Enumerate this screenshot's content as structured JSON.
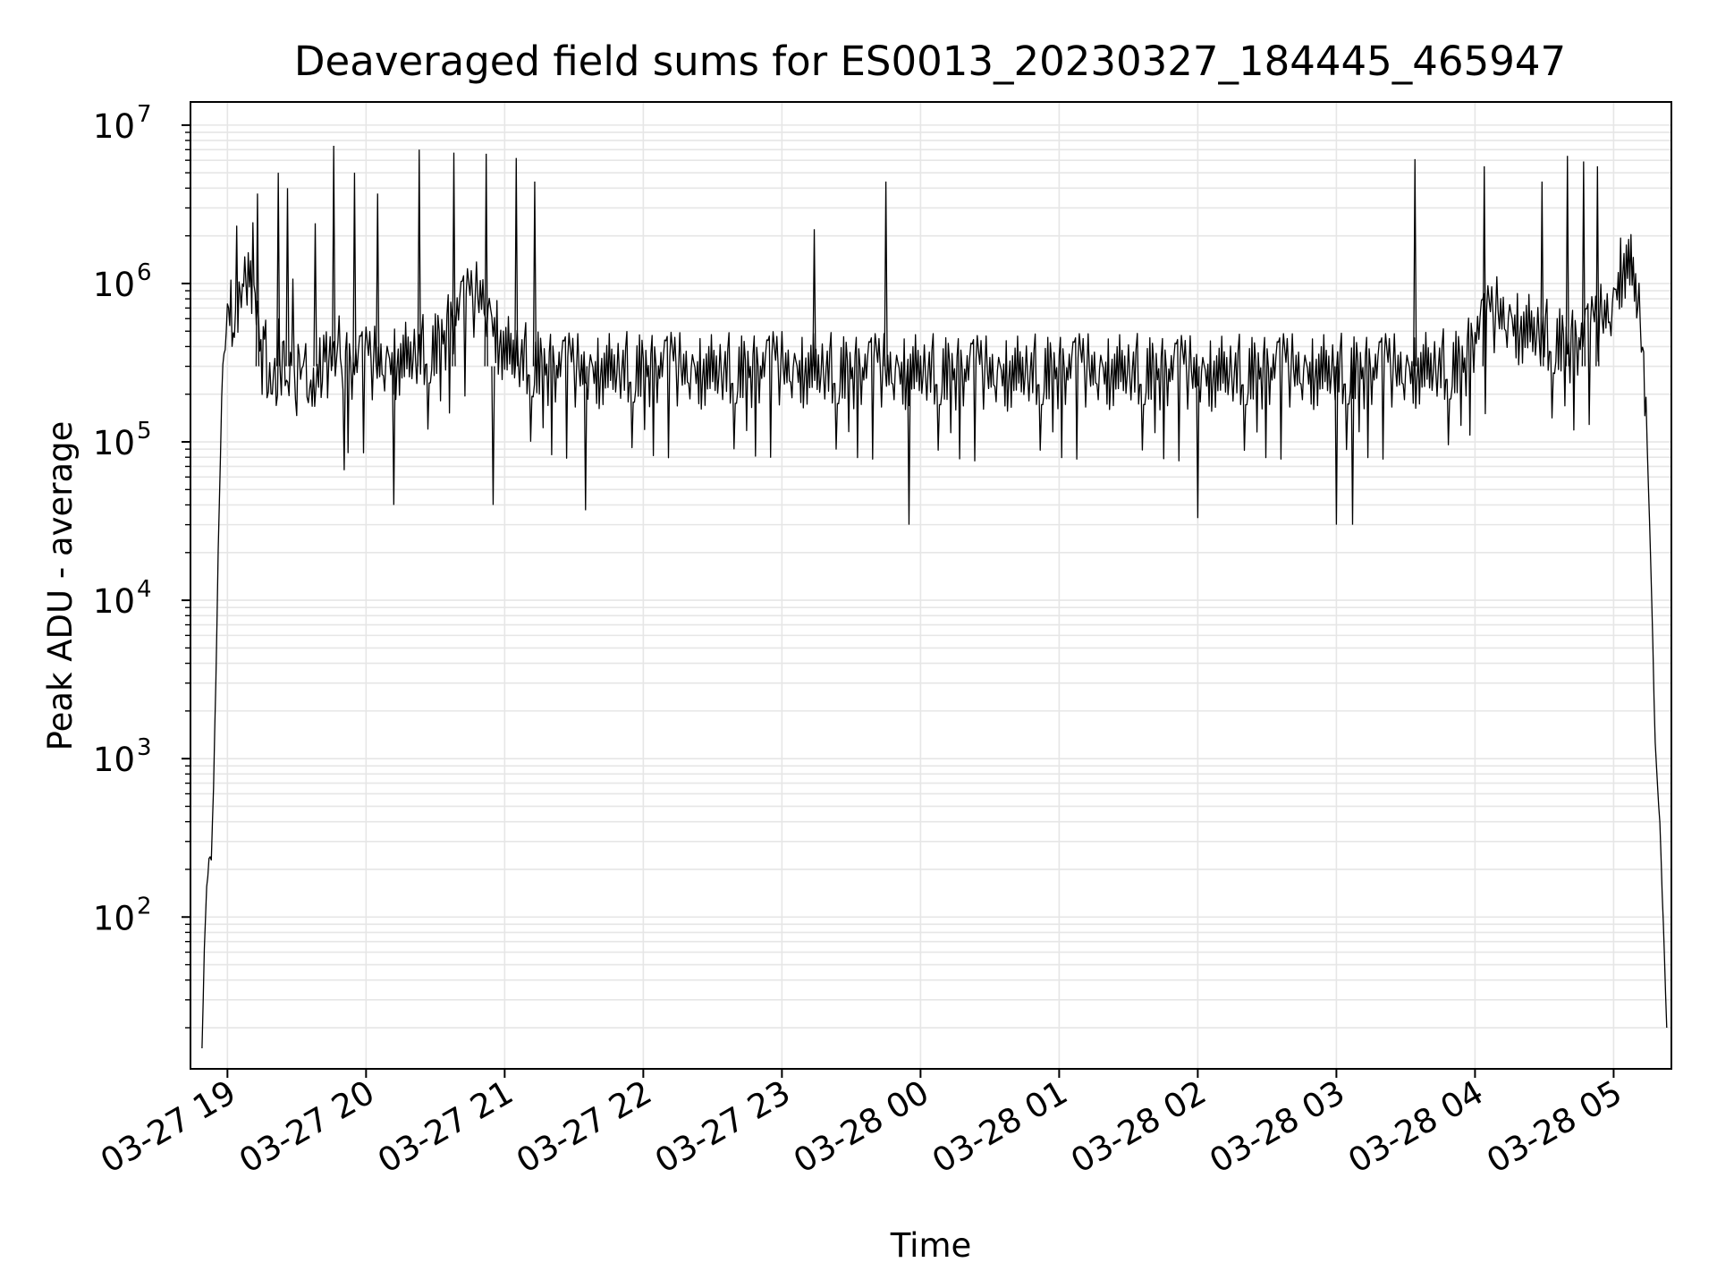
{
  "chart_data": {
    "type": "line",
    "title": "Deaveraged field sums for ES0013_20230327_184445_465947",
    "xlabel": "Time",
    "ylabel": "Peak ADU - average",
    "yscale": "log",
    "ylim": [
      11,
      14000000
    ],
    "y_ticks": [
      {
        "base": "10",
        "exp": "2",
        "value": 100
      },
      {
        "base": "10",
        "exp": "3",
        "value": 1000
      },
      {
        "base": "10",
        "exp": "4",
        "value": 10000
      },
      {
        "base": "10",
        "exp": "5",
        "value": 100000
      },
      {
        "base": "10",
        "exp": "6",
        "value": 1000000
      },
      {
        "base": "10",
        "exp": "7",
        "value": 10000000
      }
    ],
    "xlim": [
      "2023-03-27 18:44",
      "2023-03-28 05:25"
    ],
    "x_ticks": [
      {
        "label": "03-27 19",
        "time": "2023-03-27 19:00"
      },
      {
        "label": "03-27 20",
        "time": "2023-03-27 20:00"
      },
      {
        "label": "03-27 21",
        "time": "2023-03-27 21:00"
      },
      {
        "label": "03-27 22",
        "time": "2023-03-27 22:00"
      },
      {
        "label": "03-27 23",
        "time": "2023-03-27 23:00"
      },
      {
        "label": "03-28 00",
        "time": "2023-03-28 00:00"
      },
      {
        "label": "03-28 01",
        "time": "2023-03-28 01:00"
      },
      {
        "label": "03-28 02",
        "time": "2023-03-28 02:00"
      },
      {
        "label": "03-28 03",
        "time": "2023-03-28 03:00"
      },
      {
        "label": "03-28 04",
        "time": "2023-03-28 04:00"
      },
      {
        "label": "03-28 05",
        "time": "2023-03-28 05:00"
      }
    ],
    "grid": true,
    "line_color": "#000000",
    "grid_color": "#e6e6e6",
    "series": [
      {
        "x": [
          "2023-03-27 18:49",
          "2023-03-27 18:50",
          "2023-03-27 18:51",
          "2023-03-27 18:52",
          "2023-03-27 18:53",
          "2023-03-27 18:54",
          "2023-03-27 18:55",
          "2023-03-27 18:56",
          "2023-03-27 18:57",
          "2023-03-27 18:58",
          "2023-03-27 18:59",
          "2023-03-27 19:00",
          "2023-03-27 19:02",
          "2023-03-27 19:04",
          "2023-03-27 19:06",
          "2023-03-27 19:08",
          "2023-03-27 19:10",
          "2023-03-27 19:12",
          "2023-03-27 19:14",
          "2023-03-27 19:16",
          "2023-03-27 19:20",
          "2023-03-27 19:25",
          "2023-03-27 19:30",
          "2023-03-27 19:40",
          "2023-03-27 19:50",
          "2023-03-27 20:00",
          "2023-03-27 20:15",
          "2023-03-27 20:30",
          "2023-03-27 20:40",
          "2023-03-27 20:50",
          "2023-03-27 21:00",
          "2023-03-27 21:15",
          "2023-03-27 21:30",
          "2023-03-27 22:00",
          "2023-03-27 22:30",
          "2023-03-27 23:00",
          "2023-03-27 23:30",
          "2023-03-28 00:00",
          "2023-03-28 00:30",
          "2023-03-28 01:00",
          "2023-03-28 01:30",
          "2023-03-28 02:00",
          "2023-03-28 02:30",
          "2023-03-28 03:00",
          "2023-03-28 03:30",
          "2023-03-28 03:55",
          "2023-03-28 04:00",
          "2023-03-28 04:10",
          "2023-03-28 04:20",
          "2023-03-28 04:30",
          "2023-03-28 04:40",
          "2023-03-28 04:50",
          "2023-03-28 05:00",
          "2023-03-28 05:03",
          "2023-03-28 05:06",
          "2023-03-28 05:09",
          "2023-03-28 05:12",
          "2023-03-28 05:14",
          "2023-03-28 05:16",
          "2023-03-28 05:18",
          "2023-03-28 05:20",
          "2023-03-28 05:21",
          "2023-03-28 05:22",
          "2023-03-28 05:23"
        ],
        "y": [
          15,
          65,
          150,
          230,
          220,
          700,
          3000,
          20000,
          80000,
          250000,
          450000,
          550000,
          700000,
          850000,
          900000,
          1000000,
          1100000,
          900000,
          500000,
          380000,
          300000,
          280000,
          260000,
          300000,
          320000,
          330000,
          350000,
          420000,
          700000,
          900000,
          400000,
          320000,
          300000,
          310000,
          300000,
          310000,
          300000,
          300000,
          290000,
          300000,
          300000,
          290000,
          300000,
          300000,
          300000,
          330000,
          500000,
          700000,
          560000,
          500000,
          430000,
          500000,
          800000,
          1300000,
          1500000,
          1100000,
          600000,
          150000,
          20000,
          1200,
          400,
          150,
          60,
          20
        ]
      }
    ],
    "spikes": [
      {
        "x": "2023-03-27 19:13",
        "y": 3700000
      },
      {
        "x": "2023-03-27 19:22",
        "y": 5000000
      },
      {
        "x": "2023-03-27 19:26",
        "y": 4000000
      },
      {
        "x": "2023-03-27 19:38",
        "y": 2400000
      },
      {
        "x": "2023-03-27 19:46",
        "y": 7400000
      },
      {
        "x": "2023-03-27 19:55",
        "y": 5000000
      },
      {
        "x": "2023-03-27 20:05",
        "y": 3700000
      },
      {
        "x": "2023-03-27 20:23",
        "y": 7000000
      },
      {
        "x": "2023-03-27 20:38",
        "y": 6700000
      },
      {
        "x": "2023-03-27 20:52",
        "y": 6600000
      },
      {
        "x": "2023-03-27 21:05",
        "y": 6200000
      },
      {
        "x": "2023-03-27 21:13",
        "y": 4400000
      },
      {
        "x": "2023-03-27 23:14",
        "y": 2200000
      },
      {
        "x": "2023-03-27 23:45",
        "y": 4400000
      },
      {
        "x": "2023-03-28 03:34",
        "y": 6100000
      },
      {
        "x": "2023-03-28 04:04",
        "y": 5500000
      },
      {
        "x": "2023-03-28 04:29",
        "y": 4400000
      },
      {
        "x": "2023-03-28 04:40",
        "y": 6400000
      },
      {
        "x": "2023-03-28 04:47",
        "y": 5900000
      },
      {
        "x": "2023-03-28 04:53",
        "y": 5500000
      }
    ],
    "dips": [
      {
        "x": "2023-03-27 20:12",
        "y": 40000
      },
      {
        "x": "2023-03-27 20:55",
        "y": 40000
      },
      {
        "x": "2023-03-27 21:35",
        "y": 37000
      },
      {
        "x": "2023-03-27 23:55",
        "y": 30000
      },
      {
        "x": "2023-03-28 02:00",
        "y": 33000
      },
      {
        "x": "2023-03-28 03:00",
        "y": 30000
      },
      {
        "x": "2023-03-28 03:07",
        "y": 30000
      }
    ]
  }
}
